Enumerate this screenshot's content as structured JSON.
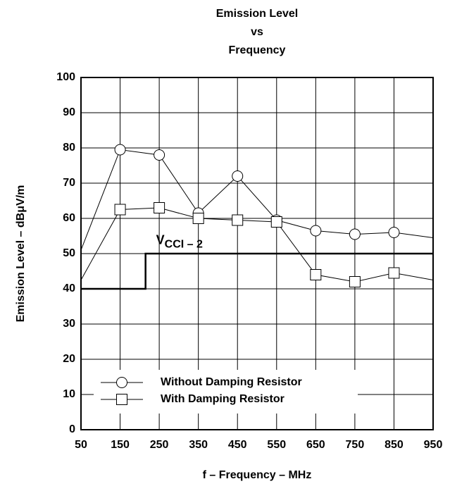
{
  "chart_data": {
    "type": "line",
    "title": [
      "Emission Level",
      "vs",
      "Frequency"
    ],
    "xlabel": "f – Frequency – MHz",
    "ylabel": "Emission Level – dBμV/m",
    "xlim": [
      50,
      950
    ],
    "ylim": [
      0,
      100
    ],
    "xticks": [
      50,
      150,
      250,
      350,
      450,
      550,
      650,
      750,
      850,
      950
    ],
    "yticks": [
      0,
      10,
      20,
      30,
      40,
      50,
      60,
      70,
      80,
      90,
      100
    ],
    "grid": true,
    "legend": "lower left",
    "series": [
      {
        "name": "Without Damping Resistor",
        "marker": "circle",
        "color": "#000000",
        "x": [
          50,
          150,
          250,
          350,
          450,
          550,
          650,
          750,
          850,
          950
        ],
        "values": [
          51,
          79.5,
          78,
          61.5,
          72,
          59.5,
          56.5,
          55.5,
          56,
          54.5
        ]
      },
      {
        "name": "With Damping Resistor",
        "marker": "square",
        "color": "#000000",
        "x": [
          50,
          150,
          250,
          350,
          450,
          550,
          650,
          750,
          850,
          950
        ],
        "values": [
          42.5,
          62.5,
          63,
          60,
          59.5,
          59,
          44,
          42,
          44.5,
          42.5
        ]
      }
    ],
    "limit_line": {
      "x": [
        50,
        215,
        215,
        950
      ],
      "values": [
        40,
        40,
        50,
        50
      ],
      "color": "#000000"
    },
    "annotation": {
      "text": "V",
      "sub": "CCI – 2",
      "x": 350,
      "y": 52.5
    }
  }
}
